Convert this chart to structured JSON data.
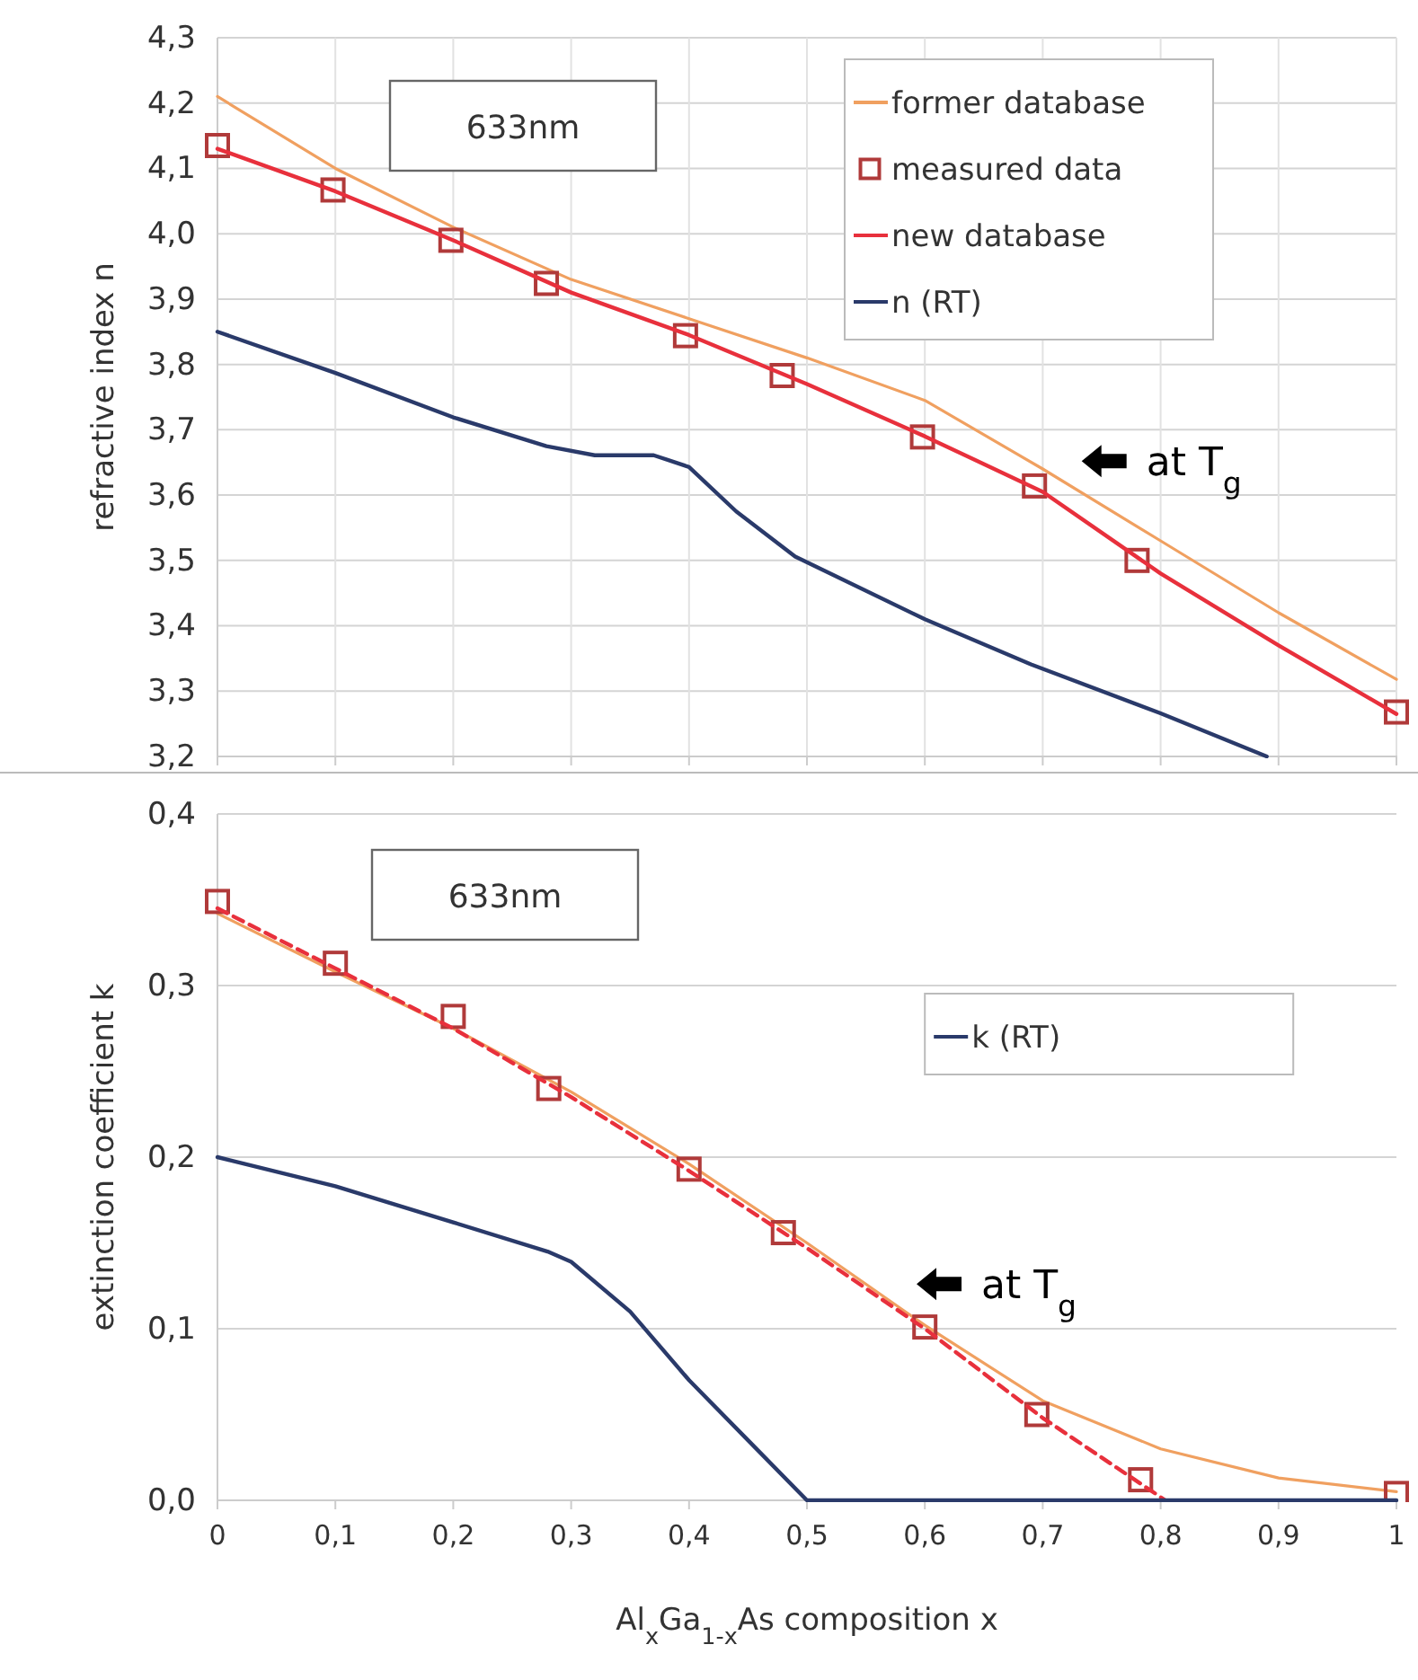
{
  "chart_data": [
    {
      "type": "line",
      "ylabel": "refractive index n",
      "xlim": [
        0,
        1
      ],
      "xticks": [
        {
          "value": 0,
          "label": null
        },
        {
          "value": 0.1,
          "label": null
        },
        {
          "value": 0.2,
          "label": null
        },
        {
          "value": 0.3,
          "label": null
        },
        {
          "value": 0.4,
          "label": null
        },
        {
          "value": 0.5,
          "label": null
        },
        {
          "value": 0.6,
          "label": null
        },
        {
          "value": 0.7,
          "label": null
        },
        {
          "value": 0.8,
          "label": null
        },
        {
          "value": 0.9,
          "label": null
        },
        {
          "value": 1,
          "label": null
        }
      ],
      "ylim": [
        3.2,
        4.3
      ],
      "yticks": [
        {
          "value": 3.2,
          "label": "3,2"
        },
        {
          "value": 3.3,
          "label": "3,3"
        },
        {
          "value": 3.4,
          "label": "3,4"
        },
        {
          "value": 3.5,
          "label": "3,5"
        },
        {
          "value": 3.6,
          "label": "3,6"
        },
        {
          "value": 3.7,
          "label": "3,7"
        },
        {
          "value": 3.8,
          "label": "3,8"
        },
        {
          "value": 3.9,
          "label": "3,9"
        },
        {
          "value": 4.0,
          "label": "4,0"
        },
        {
          "value": 4.1,
          "label": "4,1"
        },
        {
          "value": 4.2,
          "label": "4,2"
        },
        {
          "value": 4.3,
          "label": "4,3"
        }
      ],
      "tick_labels": "y",
      "grid": true,
      "legend": "top right",
      "annotations": [
        "633nm",
        "at T$_{g}$"
      ],
      "series": [
        {
          "name": "former database",
          "type": "line",
          "color": "#f0a060",
          "x": [
            0,
            0.1,
            0.2,
            0.3,
            0.4,
            0.5,
            0.6,
            0.7,
            0.8,
            0.9,
            1
          ],
          "values": [
            4.21,
            4.1,
            4.01,
            3.93,
            3.87,
            3.81,
            3.745,
            3.64,
            3.53,
            3.42,
            3.318
          ]
        },
        {
          "name": "measured data",
          "type": "scatter",
          "marker": "square",
          "color": "#b03a3a",
          "x": [
            0,
            0.098,
            0.198,
            0.279,
            0.397,
            0.479,
            0.598,
            0.693,
            0.78,
            1
          ],
          "values": [
            4.135,
            4.067,
            3.99,
            3.924,
            3.844,
            3.783,
            3.689,
            3.614,
            3.5,
            3.268
          ]
        },
        {
          "name": "new database",
          "type": "line",
          "color": "#e8303c",
          "x": [
            0,
            0.1,
            0.2,
            0.3,
            0.4,
            0.5,
            0.6,
            0.7,
            0.8,
            0.9,
            1
          ],
          "values": [
            4.13,
            4.065,
            3.99,
            3.91,
            3.845,
            3.77,
            3.69,
            3.605,
            3.48,
            3.37,
            3.265
          ]
        },
        {
          "name": "n (RT)",
          "type": "line",
          "color": "#2a3a6a",
          "x": [
            0,
            0.1,
            0.2,
            0.279,
            0.32,
            0.37,
            0.4,
            0.44,
            0.49,
            0.6,
            0.69,
            0.8,
            0.89
          ],
          "values": [
            3.85,
            3.787,
            3.719,
            3.675,
            3.661,
            3.661,
            3.643,
            3.575,
            3.506,
            3.41,
            3.341,
            3.266,
            3.2
          ]
        }
      ]
    },
    {
      "type": "line",
      "xlabel": "Al$_{x}$Ga$_{1-x}$As composition x",
      "ylabel": "extinction coefficient k",
      "xlim": [
        0,
        1
      ],
      "xticks": [
        {
          "value": 0,
          "label": "0"
        },
        {
          "value": 0.1,
          "label": "0,1"
        },
        {
          "value": 0.2,
          "label": "0,2"
        },
        {
          "value": 0.3,
          "label": "0,3"
        },
        {
          "value": 0.4,
          "label": "0,4"
        },
        {
          "value": 0.5,
          "label": "0,5"
        },
        {
          "value": 0.6,
          "label": "0,6"
        },
        {
          "value": 0.7,
          "label": "0,7"
        },
        {
          "value": 0.8,
          "label": "0,8"
        },
        {
          "value": 0.9,
          "label": "0,9"
        },
        {
          "value": 1,
          "label": "1"
        }
      ],
      "ylim": [
        0,
        0.4
      ],
      "yticks": [
        {
          "value": 0,
          "label": "0,0"
        },
        {
          "value": 0.1,
          "label": "0,1"
        },
        {
          "value": 0.2,
          "label": "0,2"
        },
        {
          "value": 0.3,
          "label": "0,3"
        },
        {
          "value": 0.4,
          "label": "0,4"
        }
      ],
      "grid": "y",
      "legend": "top right",
      "annotations": [
        "633nm",
        "at T$_{g}$"
      ],
      "series": [
        {
          "type": "line",
          "color": "#f0a060",
          "x": [
            0,
            0.1,
            0.2,
            0.3,
            0.4,
            0.5,
            0.6,
            0.7,
            0.8,
            0.9,
            1
          ],
          "values": [
            0.342,
            0.308,
            0.275,
            0.238,
            0.196,
            0.15,
            0.102,
            0.058,
            0.03,
            0.013,
            0.005
          ]
        },
        {
          "type": "scatter",
          "marker": "square",
          "color": "#b03a3a",
          "x": [
            0,
            0.1,
            0.2,
            0.281,
            0.4,
            0.48,
            0.6,
            0.695,
            0.783,
            1
          ],
          "values": [
            0.349,
            0.313,
            0.282,
            0.24,
            0.193,
            0.156,
            0.101,
            0.05,
            0.012,
            0.004
          ]
        },
        {
          "type": "line",
          "line_style": "dashed",
          "color": "#e8303c",
          "x": [
            0,
            0.1,
            0.2,
            0.3,
            0.4,
            0.5,
            0.6,
            0.7,
            0.804
          ],
          "values": [
            0.345,
            0.31,
            0.275,
            0.235,
            0.192,
            0.147,
            0.1,
            0.048,
            0
          ]
        },
        {
          "name": "k (RT)",
          "type": "line",
          "color": "#2a3a6a",
          "x": [
            0,
            0.1,
            0.2,
            0.28,
            0.3,
            0.35,
            0.4,
            0.45,
            0.5,
            0.58,
            1
          ],
          "values": [
            0.2,
            0.183,
            0.162,
            0.145,
            0.139,
            0.11,
            0.07,
            0.035,
            0,
            0,
            0
          ]
        }
      ]
    }
  ]
}
